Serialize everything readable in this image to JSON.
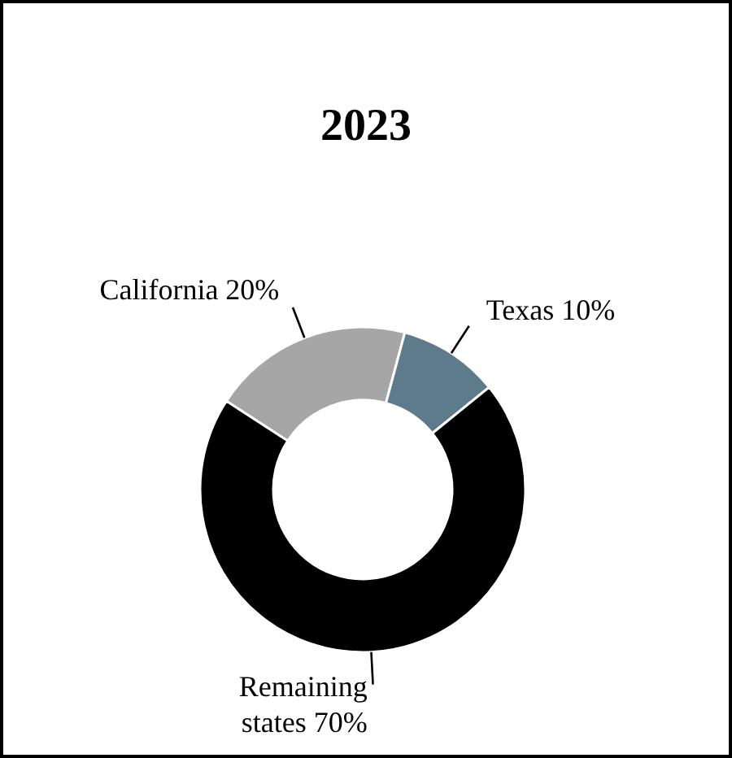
{
  "chart_data": {
    "type": "donut",
    "title": "2023",
    "categories": [
      "California",
      "Texas",
      "Remaining states"
    ],
    "values": [
      20,
      10,
      70
    ],
    "value_labels": [
      "20%",
      "10%",
      "70%"
    ],
    "colors": [
      "#a6a6a6",
      "#5d7b8b",
      "#000000"
    ]
  }
}
